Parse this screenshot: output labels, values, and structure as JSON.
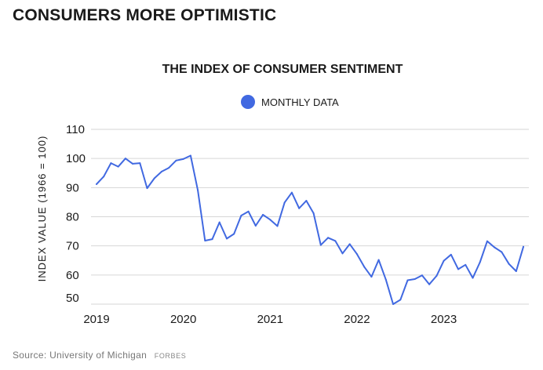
{
  "headline": "CONSUMERS MORE OPTIMISTIC",
  "source": {
    "text": "Source: University of Michigan",
    "brand": "FORBES"
  },
  "chart_data": {
    "type": "line",
    "title": "THE INDEX OF CONSUMER SENTIMENT",
    "ylabel": "INDEX VALUE (1966 = 100)",
    "xlabel": "",
    "ylim": [
      50,
      110
    ],
    "yticks": [
      50,
      60,
      70,
      80,
      90,
      100,
      110
    ],
    "year_ticks": [
      {
        "label": "2019",
        "index": 0
      },
      {
        "label": "2020",
        "index": 12
      },
      {
        "label": "2021",
        "index": 24
      },
      {
        "label": "2022",
        "index": 36
      },
      {
        "label": "2023",
        "index": 48
      }
    ],
    "grid": true,
    "legend": {
      "position": "top-center"
    },
    "color": "#4169e1",
    "series": [
      {
        "name": "MONTHLY DATA",
        "values": [
          91.2,
          93.8,
          98.4,
          97.2,
          100.0,
          98.2,
          98.4,
          89.8,
          93.2,
          95.5,
          96.8,
          99.3,
          99.8,
          101.0,
          89.1,
          71.8,
          72.3,
          78.1,
          72.5,
          74.1,
          80.4,
          81.8,
          76.9,
          80.7,
          79.0,
          76.8,
          84.9,
          88.3,
          82.9,
          85.5,
          81.2,
          70.3,
          72.8,
          71.7,
          67.4,
          70.6,
          67.2,
          62.8,
          59.4,
          65.2,
          58.4,
          50.0,
          51.5,
          58.2,
          58.6,
          59.9,
          56.8,
          59.7,
          64.9,
          67.0,
          62.0,
          63.5,
          59.0,
          64.4,
          71.6,
          69.5,
          67.9,
          63.8,
          61.3,
          69.7
        ]
      }
    ]
  }
}
